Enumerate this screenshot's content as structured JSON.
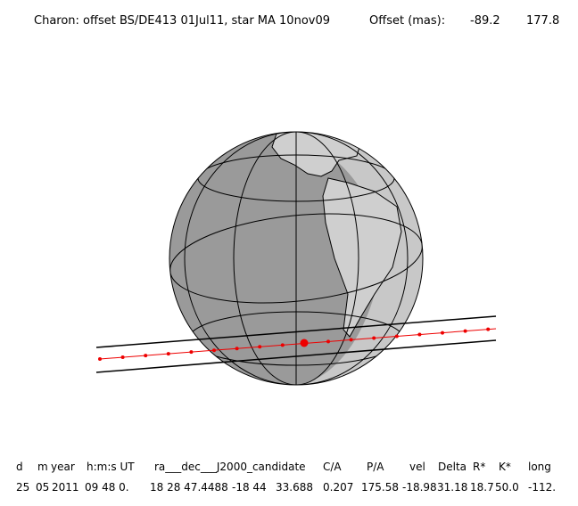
{
  "header": {
    "title": "Charon: offset BS/DE413 01Jul11, star MA 10nov09",
    "offset_label": "Offset (mas):",
    "offset_x": "-89.2",
    "offset_y": "177.8"
  },
  "table": {
    "columns": [
      "d",
      "m",
      "year",
      "h:m:s UT",
      "ra___dec___J2000_candidate",
      "C/A",
      "P/A",
      "vel",
      "Delta",
      "R*",
      "K*",
      "long"
    ],
    "row": [
      "25",
      "05",
      "2011",
      "09 48 0.",
      "18 28 47.4488",
      "-18 44",
      "33.688",
      "0.207",
      "175.58",
      "-18.98",
      "31.18",
      "18.7",
      "50.0",
      "-112."
    ]
  }
}
